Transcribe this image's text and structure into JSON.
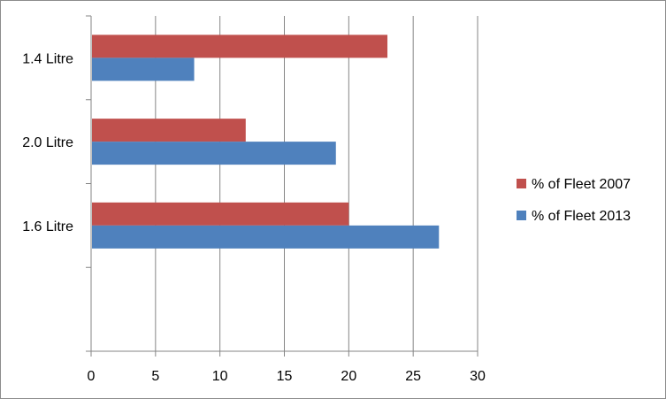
{
  "chart_data": {
    "type": "bar",
    "orientation": "horizontal",
    "categories": [
      "1.4 Litre",
      "2.0 Litre",
      "1.6 Litre"
    ],
    "series": [
      {
        "name": "% of Fleet 2007",
        "values": [
          23,
          12,
          20
        ],
        "color": "#c0504d"
      },
      {
        "name": "% of Fleet 2013",
        "values": [
          8,
          19,
          27
        ],
        "color": "#4f81bd"
      }
    ],
    "xlim": [
      0,
      30
    ],
    "xticks": [
      "0",
      "5",
      "10",
      "15",
      "20",
      "25",
      "30"
    ],
    "grid": "vertical",
    "legend_position": "right",
    "legend_order": [
      "% of Fleet 2007",
      "% of Fleet 2013"
    ]
  }
}
